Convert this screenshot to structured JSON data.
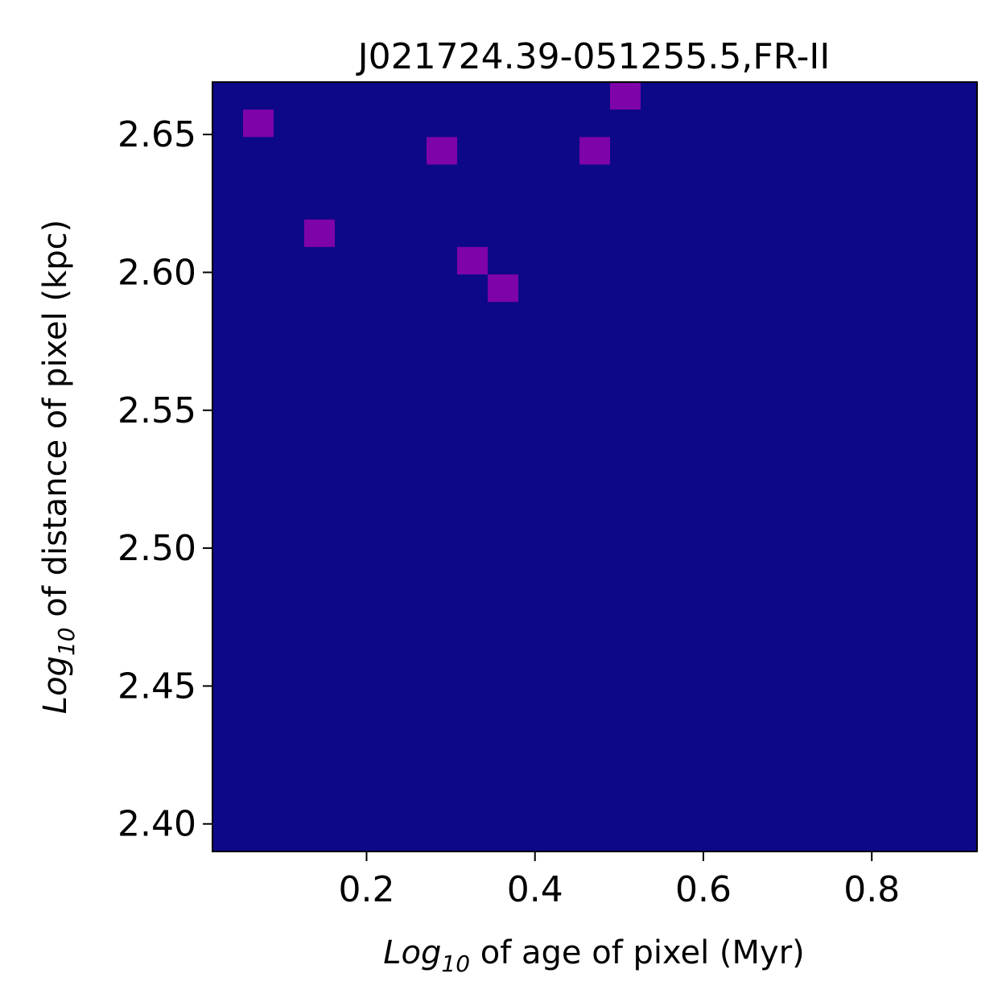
{
  "chart_data": {
    "type": "heatmap",
    "title": "J021724.39-051255.5,FR-II",
    "xlabel_prefix": "Log",
    "xlabel_sub": "10",
    "xlabel_suffix": " of age of pixel (Myr)",
    "ylabel_prefix": "Log",
    "ylabel_sub": "10",
    "ylabel_suffix": " of distance of pixel (kpc)",
    "xlim": [
      0.017,
      0.925
    ],
    "ylim": [
      2.39,
      2.669
    ],
    "nx": 25,
    "ny": 28,
    "xticks": [
      0.2,
      0.4,
      0.6,
      0.8
    ],
    "xtick_labels": [
      "0.2",
      "0.4",
      "0.6",
      "0.8"
    ],
    "yticks": [
      2.4,
      2.45,
      2.5,
      2.55,
      2.6,
      2.65
    ],
    "ytick_labels": [
      "2.40",
      "2.45",
      "2.50",
      "2.55",
      "2.60",
      "2.65"
    ],
    "colormap": "plasma",
    "vmin": 0,
    "vmax": 4,
    "colors": {
      "0": "#0d0887",
      "1": "#7e03a8",
      "2": "#cc4778",
      "3": "#f89540",
      "4": "#f0f921"
    },
    "grid": false,
    "counts_top_to_bottom": [
      "0000000000000100000000000",
      "0100000000000000000000000",
      "0000000100001000000000000",
      "0000000000000000000000000",
      "0000000000000000000000000",
      "0001000000000000000000000",
      "0000000010000000000000000",
      "0000000001000000000000000",
      "0000000000000000000000000",
      "0000000000000000000000000",
      "0000000000000000000000000",
      "0000000000000000000000000",
      "0000000000000000000000000",
      "0000000000000000000000000",
      "0000000000000000000000000",
      "0000000000000000000000000",
      "0000000000000000000000000",
      "0000000000000000000000000",
      "0000000000000000000000000",
      "0000000000000000000000000",
      "0000000000000000000000000",
      "0000000000000000000000000",
      "0000000000000000000000000",
      "0000000000000000000000000",
      "0000000000000000000000000",
      "0000000000000000000000000",
      "0000000000000000000000000",
      "0000000000000000000000000"
    ]
  }
}
